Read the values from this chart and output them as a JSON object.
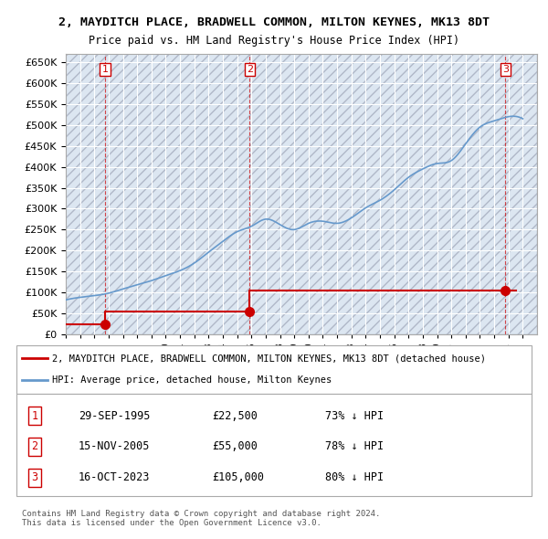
{
  "title": "2, MAYDITCH PLACE, BRADWELL COMMON, MILTON KEYNES, MK13 8DT",
  "subtitle": "Price paid vs. HM Land Registry's House Price Index (HPI)",
  "sale_dates": [
    1995.75,
    2005.88,
    2023.79
  ],
  "sale_prices": [
    22500,
    55000,
    105000
  ],
  "sale_labels": [
    "1",
    "2",
    "3"
  ],
  "hpi_years": [
    1993,
    1994,
    1995,
    1996,
    1997,
    1998,
    1999,
    2000,
    2001,
    2002,
    2003,
    2004,
    2005,
    2006,
    2007,
    2008,
    2009,
    2010,
    2011,
    2012,
    2013,
    2014,
    2015,
    2016,
    2017,
    2018,
    2019,
    2020,
    2021,
    2022,
    2023,
    2024,
    2025
  ],
  "hpi_values": [
    82000,
    88000,
    92000,
    98000,
    108000,
    118000,
    128000,
    140000,
    152000,
    170000,
    196000,
    222000,
    245000,
    258000,
    275000,
    262000,
    250000,
    265000,
    270000,
    265000,
    278000,
    302000,
    320000,
    345000,
    375000,
    395000,
    408000,
    415000,
    455000,
    495000,
    510000,
    520000,
    515000
  ],
  "price_line_color": "#cc0000",
  "hpi_line_color": "#6699cc",
  "sale_dot_color": "#cc0000",
  "background_color": "#dce6f1",
  "plot_bg_color": "#dce6f1",
  "grid_color": "#ffffff",
  "ylim": [
    0,
    670000
  ],
  "xlim": [
    1993,
    2026
  ],
  "yticks": [
    0,
    50000,
    100000,
    150000,
    200000,
    250000,
    300000,
    350000,
    400000,
    450000,
    500000,
    550000,
    600000,
    650000
  ],
  "legend_line1": "2, MAYDITCH PLACE, BRADWELL COMMON, MILTON KEYNES, MK13 8DT (detached house)",
  "legend_line2": "HPI: Average price, detached house, Milton Keynes",
  "table_data": [
    [
      "1",
      "29-SEP-1995",
      "£22,500",
      "73% ↓ HPI"
    ],
    [
      "2",
      "15-NOV-2005",
      "£55,000",
      "78% ↓ HPI"
    ],
    [
      "3",
      "16-OCT-2023",
      "£105,000",
      "80% ↓ HPI"
    ]
  ],
  "footnote": "Contains HM Land Registry data © Crown copyright and database right 2024.\nThis data is licensed under the Open Government Licence v3.0."
}
